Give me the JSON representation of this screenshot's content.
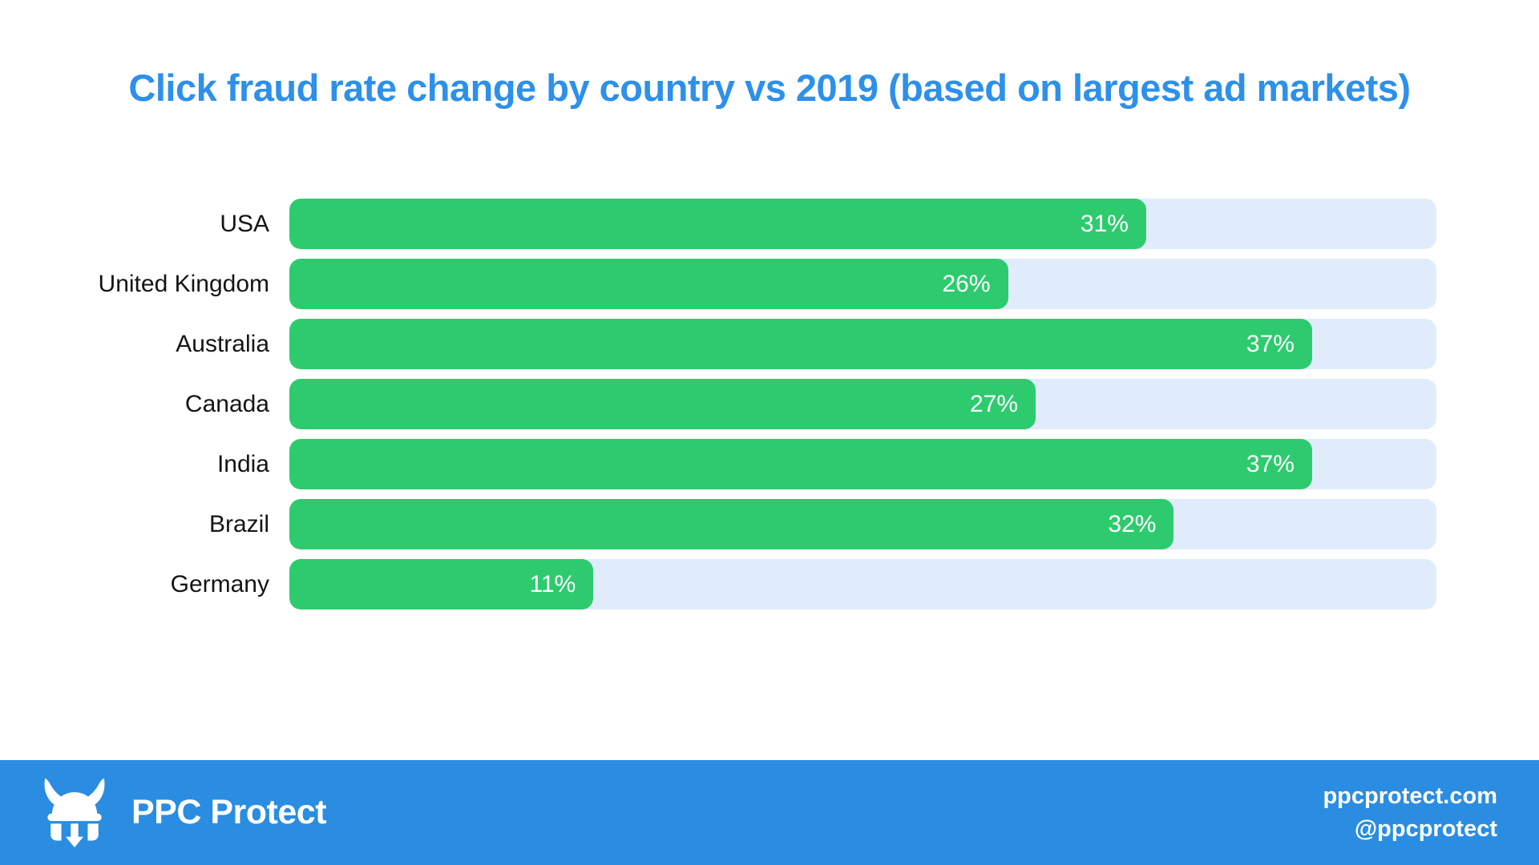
{
  "title": {
    "text": "Click fraud rate change by country vs 2019 (based on largest ad markets)",
    "color": "#2d90eb"
  },
  "chart_data": {
    "type": "bar",
    "orientation": "horizontal",
    "title": "Click fraud rate change by country vs 2019 (based on largest ad markets)",
    "categories": [
      "USA",
      "United Kingdom",
      "Australia",
      "Canada",
      "India",
      "Brazil",
      "Germany"
    ],
    "values": [
      31,
      26,
      37,
      27,
      37,
      32,
      11
    ],
    "value_labels": [
      "31%",
      "26%",
      "37%",
      "27%",
      "37%",
      "32%",
      "11%"
    ],
    "unit": "%",
    "xlabel": "",
    "ylabel": "",
    "xticks": [
      "0%",
      "10%",
      "20%",
      "30%",
      "40%"
    ],
    "xtick_values": [
      0,
      10,
      20,
      30,
      40
    ],
    "axis_max": 41.5,
    "grid": false,
    "legend": false,
    "bar_color": "#2ecb6e",
    "track_color": "#e0ecfb"
  },
  "footer": {
    "brand": "PPC Protect",
    "logo_icon": "viking-helmet-icon",
    "website": "ppcprotect.com",
    "social": "@ppcprotect",
    "background": "#2a8de2"
  }
}
